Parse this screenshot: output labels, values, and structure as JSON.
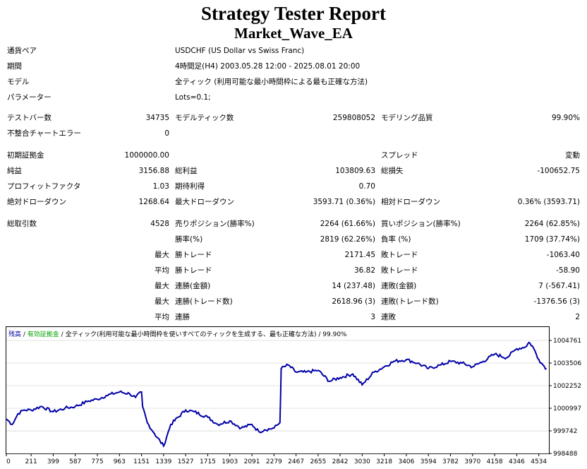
{
  "report": {
    "title": "Strategy Tester Report",
    "subtitle": "Market_Wave_EA",
    "symbol_label": "通貨ペア",
    "symbol_value": "USDCHF (US Dollar vs Swiss Franc)",
    "period_label": "期間",
    "period_value": "4時間足(H4) 2003.05.28 12:00 - 2025.08.01 20:00",
    "model_label": "モデル",
    "model_value": "全ティック (利用可能な最小時間枠による最も正確な方法)",
    "params_label": "パラメーター",
    "params_value": "Lots=0.1;",
    "bars_label": "テストバー数",
    "bars_value": "34735",
    "ticks_label": "モデルティック数",
    "ticks_value": "259808052",
    "quality_label": "モデリング品質",
    "quality_value": "99.90%",
    "mismatch_label": "不整合チャートエラー",
    "mismatch_value": "0",
    "deposit_label": "初期証拠金",
    "deposit_value": "1000000.00",
    "spread_label": "スプレッド",
    "spread_value": "変動",
    "net_label": "純益",
    "net_value": "3156.88",
    "gross_profit_label": "総利益",
    "gross_profit_value": "103809.63",
    "gross_loss_label": "総損失",
    "gross_loss_value": "-100652.75",
    "pf_label": "プロフィットファクタ",
    "pf_value": "1.03",
    "expected_label": "期待利得",
    "expected_value": "0.70",
    "abs_dd_label": "絶対ドローダウン",
    "abs_dd_value": "1268.64",
    "max_dd_label": "最大ドローダウン",
    "max_dd_value": "3593.71 (0.36%)",
    "rel_dd_label": "相対ドローダウン",
    "rel_dd_value": "0.36% (3593.71)",
    "trades_label": "総取引数",
    "trades_value": "4528",
    "short_label": "売りポジション(勝率%)",
    "short_value": "2264 (61.66%)",
    "long_label": "買いポジション(勝率%)",
    "long_value": "2264 (62.85%)",
    "win_label": "勝率(%)",
    "win_value": "2819 (62.26%)",
    "loss_label": "負率 (%)",
    "loss_value": "1709 (37.74%)",
    "max_label": "最大",
    "avg_label": "平均",
    "max_win_label": "勝トレード",
    "max_win_value": "2171.45",
    "max_loss_label": "敗トレード",
    "max_loss_value": "-1063.40",
    "avg_win_label": "勝トレード",
    "avg_win_value": "36.82",
    "avg_loss_label": "敗トレード",
    "avg_loss_value": "-58.90",
    "consec_win_amt_label": "連勝(金額)",
    "consec_win_amt_value": "14 (237.48)",
    "consec_loss_amt_label": "連敗(金額)",
    "consec_loss_amt_value": "7 (-567.41)",
    "consec_win_cnt_label": "連勝(トレード数)",
    "consec_win_cnt_value": "2618.96 (3)",
    "consec_loss_cnt_label": "連敗(トレード数)",
    "consec_loss_cnt_value": "-1376.56 (3)",
    "avg_consec_win_label": "連勝",
    "avg_consec_win_value": "3",
    "avg_consec_loss_label": "連敗",
    "avg_consec_loss_value": "2"
  },
  "chart_data": {
    "type": "line",
    "header": {
      "balance": "残高",
      "sep1": " / ",
      "margin": "有効証拠金",
      "sep2": " / ",
      "model": "全ティック(利用可能な最小時間枠を使いすべてのティックを生成する、最も正確な方法)",
      "sep3": " / ",
      "quality": "99.90%"
    },
    "colors": {
      "line": "#0000a8",
      "header_balance": "#0000a8",
      "header_margin": "#00a000",
      "grid": "#c8c8c8"
    },
    "y_ticks": [
      "1004761",
      "1003506",
      "1002252",
      "1000997",
      "999742",
      "998488"
    ],
    "y_tick_values": [
      1004761,
      1003506,
      1002252,
      1000997,
      999742,
      998488
    ],
    "ylim": [
      998488,
      1004761
    ],
    "x_ticks": [
      "0",
      "211",
      "399",
      "587",
      "775",
      "963",
      "1151",
      "1339",
      "1527",
      "1715",
      "1903",
      "2091",
      "2279",
      "2467",
      "2655",
      "2842",
      "3030",
      "3218",
      "3406",
      "3594",
      "3782",
      "3970",
      "4158",
      "4346",
      "4534"
    ],
    "xlim": [
      0,
      4620
    ],
    "x": [
      0,
      50,
      100,
      150,
      211,
      300,
      399,
      500,
      587,
      700,
      775,
      850,
      963,
      1050,
      1100,
      1151,
      1160,
      1200,
      1260,
      1339,
      1400,
      1527,
      1600,
      1715,
      1800,
      1903,
      2000,
      2091,
      2150,
      2200,
      2279,
      2330,
      2340,
      2400,
      2467,
      2550,
      2655,
      2750,
      2842,
      2950,
      3030,
      3130,
      3218,
      3300,
      3406,
      3500,
      3594,
      3700,
      3782,
      3880,
      3970,
      4060,
      4158,
      4260,
      4346,
      4420,
      4450,
      4480,
      4534,
      4570,
      4600
    ],
    "y": [
      1000400,
      1000100,
      1000700,
      1000900,
      1000900,
      1001100,
      1000800,
      1001000,
      1001100,
      1001400,
      1001500,
      1001700,
      1001900,
      1001800,
      1001600,
      1001900,
      1001100,
      1000200,
      999600,
      998900,
      1000100,
      1000900,
      1000800,
      1000500,
      1000100,
      1000300,
      999900,
      1000100,
      999700,
      999800,
      999900,
      1000200,
      1003200,
      1003400,
      1003000,
      1003000,
      1003100,
      1002500,
      1002700,
      1002900,
      1002300,
      1003000,
      1003300,
      1003600,
      1003700,
      1003500,
      1003200,
      1003400,
      1003600,
      1003500,
      1003300,
      1003600,
      1004000,
      1003800,
      1004300,
      1004400,
      1004650,
      1004450,
      1003700,
      1003400,
      1003200
    ]
  }
}
